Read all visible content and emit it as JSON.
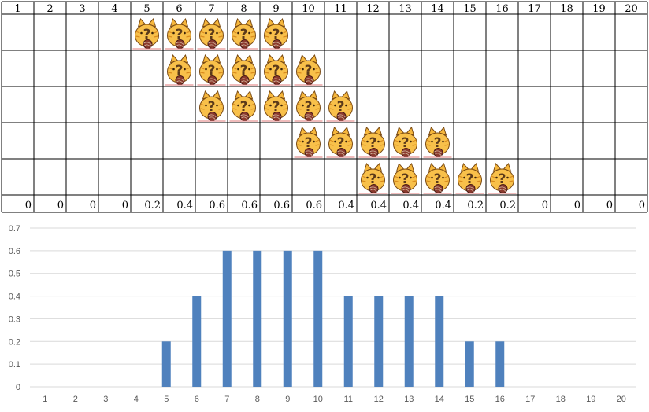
{
  "sheet": {
    "headers": [
      "1",
      "2",
      "3",
      "4",
      "5",
      "6",
      "7",
      "8",
      "9",
      "10",
      "11",
      "12",
      "13",
      "14",
      "15",
      "16",
      "17",
      "18",
      "19",
      "20"
    ],
    "rows": [
      [
        5,
        6,
        7,
        8,
        9
      ],
      [
        6,
        7,
        8,
        9,
        10
      ],
      [
        7,
        8,
        9,
        10,
        11
      ],
      [
        10,
        11,
        12,
        13,
        14
      ],
      [
        12,
        13,
        14,
        15,
        16
      ]
    ],
    "row_icon_name": "cat-question-icon",
    "results": [
      "0",
      "0",
      "0",
      "0",
      "0.2",
      "0.4",
      "0.6",
      "0.6",
      "0.6",
      "0.6",
      "0.4",
      "0.4",
      "0.4",
      "0.4",
      "0.2",
      "0.2",
      "0",
      "0",
      "0",
      "0"
    ]
  },
  "chart_data": {
    "type": "bar",
    "categories": [
      "1",
      "2",
      "3",
      "4",
      "5",
      "6",
      "7",
      "8",
      "9",
      "10",
      "11",
      "12",
      "13",
      "14",
      "15",
      "16",
      "17",
      "18",
      "19",
      "20"
    ],
    "series": [
      {
        "values": [
          0,
          0,
          0,
          0,
          0.2,
          0.4,
          0.6,
          0.6,
          0.6,
          0.6,
          0.4,
          0.4,
          0.4,
          0.4,
          0.2,
          0.2,
          0,
          0,
          0,
          0
        ]
      }
    ],
    "ylim": [
      0,
      0.7
    ],
    "yticks": [
      "0",
      "0.1",
      "0.2",
      "0.3",
      "0.4",
      "0.5",
      "0.6",
      "0.7"
    ],
    "grid": true,
    "legend": "none",
    "bar_color": "#4f81bd",
    "grid_color": "#d9d9d9"
  }
}
